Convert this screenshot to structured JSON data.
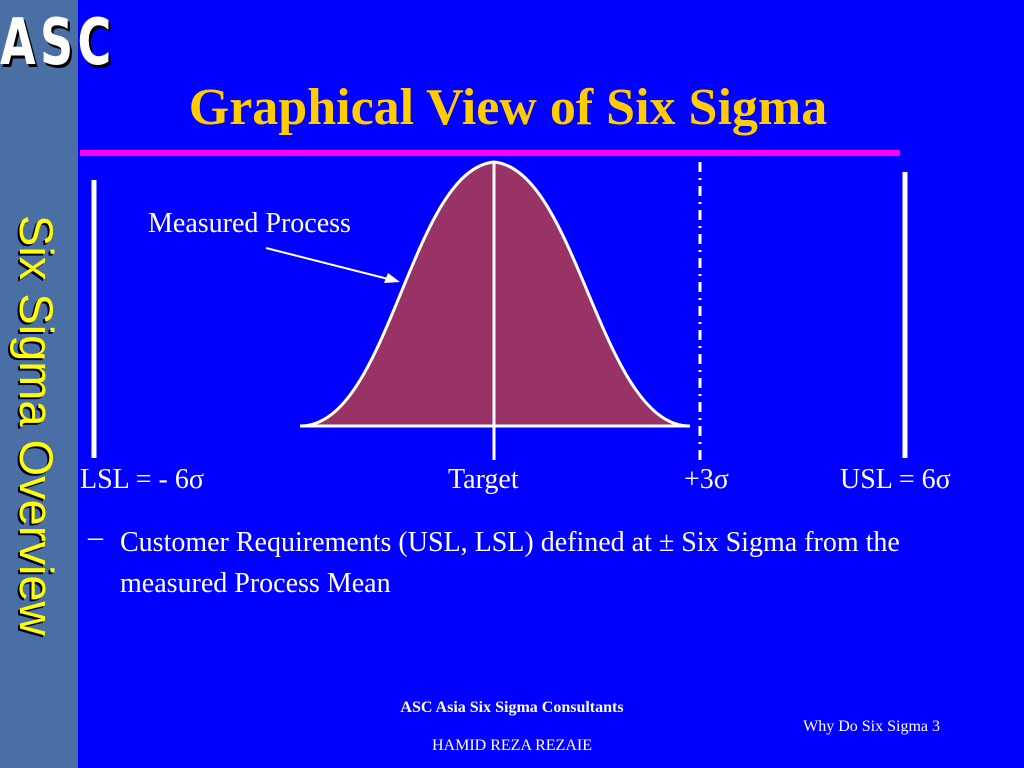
{
  "logo": "ASC",
  "sidebar": {
    "vertical_label": "Six Sigma Overview"
  },
  "title": "Graphical View of Six Sigma",
  "diagram": {
    "annotation": "Measured Process",
    "labels": {
      "lsl": "LSL = - 6σ",
      "target": "Target",
      "plus3": "+3σ",
      "usl": "USL = 6σ"
    }
  },
  "bullet": {
    "marker": "–",
    "text": "Customer Requirements (USL, LSL) defined at ± Six Sigma from the measured Process Mean"
  },
  "footer": {
    "company": "ASC Asia Six Sigma Consultants",
    "author": "HAMID REZA REZAIE",
    "slide": "Why Do Six Sigma 3"
  },
  "colors": {
    "background": "#0000ff",
    "sidebar": "#4a6fa5",
    "title": "#ffcc00",
    "rule": "#ff00ff",
    "curve_fill": "#993366",
    "vertical_label": "#ffff00"
  }
}
